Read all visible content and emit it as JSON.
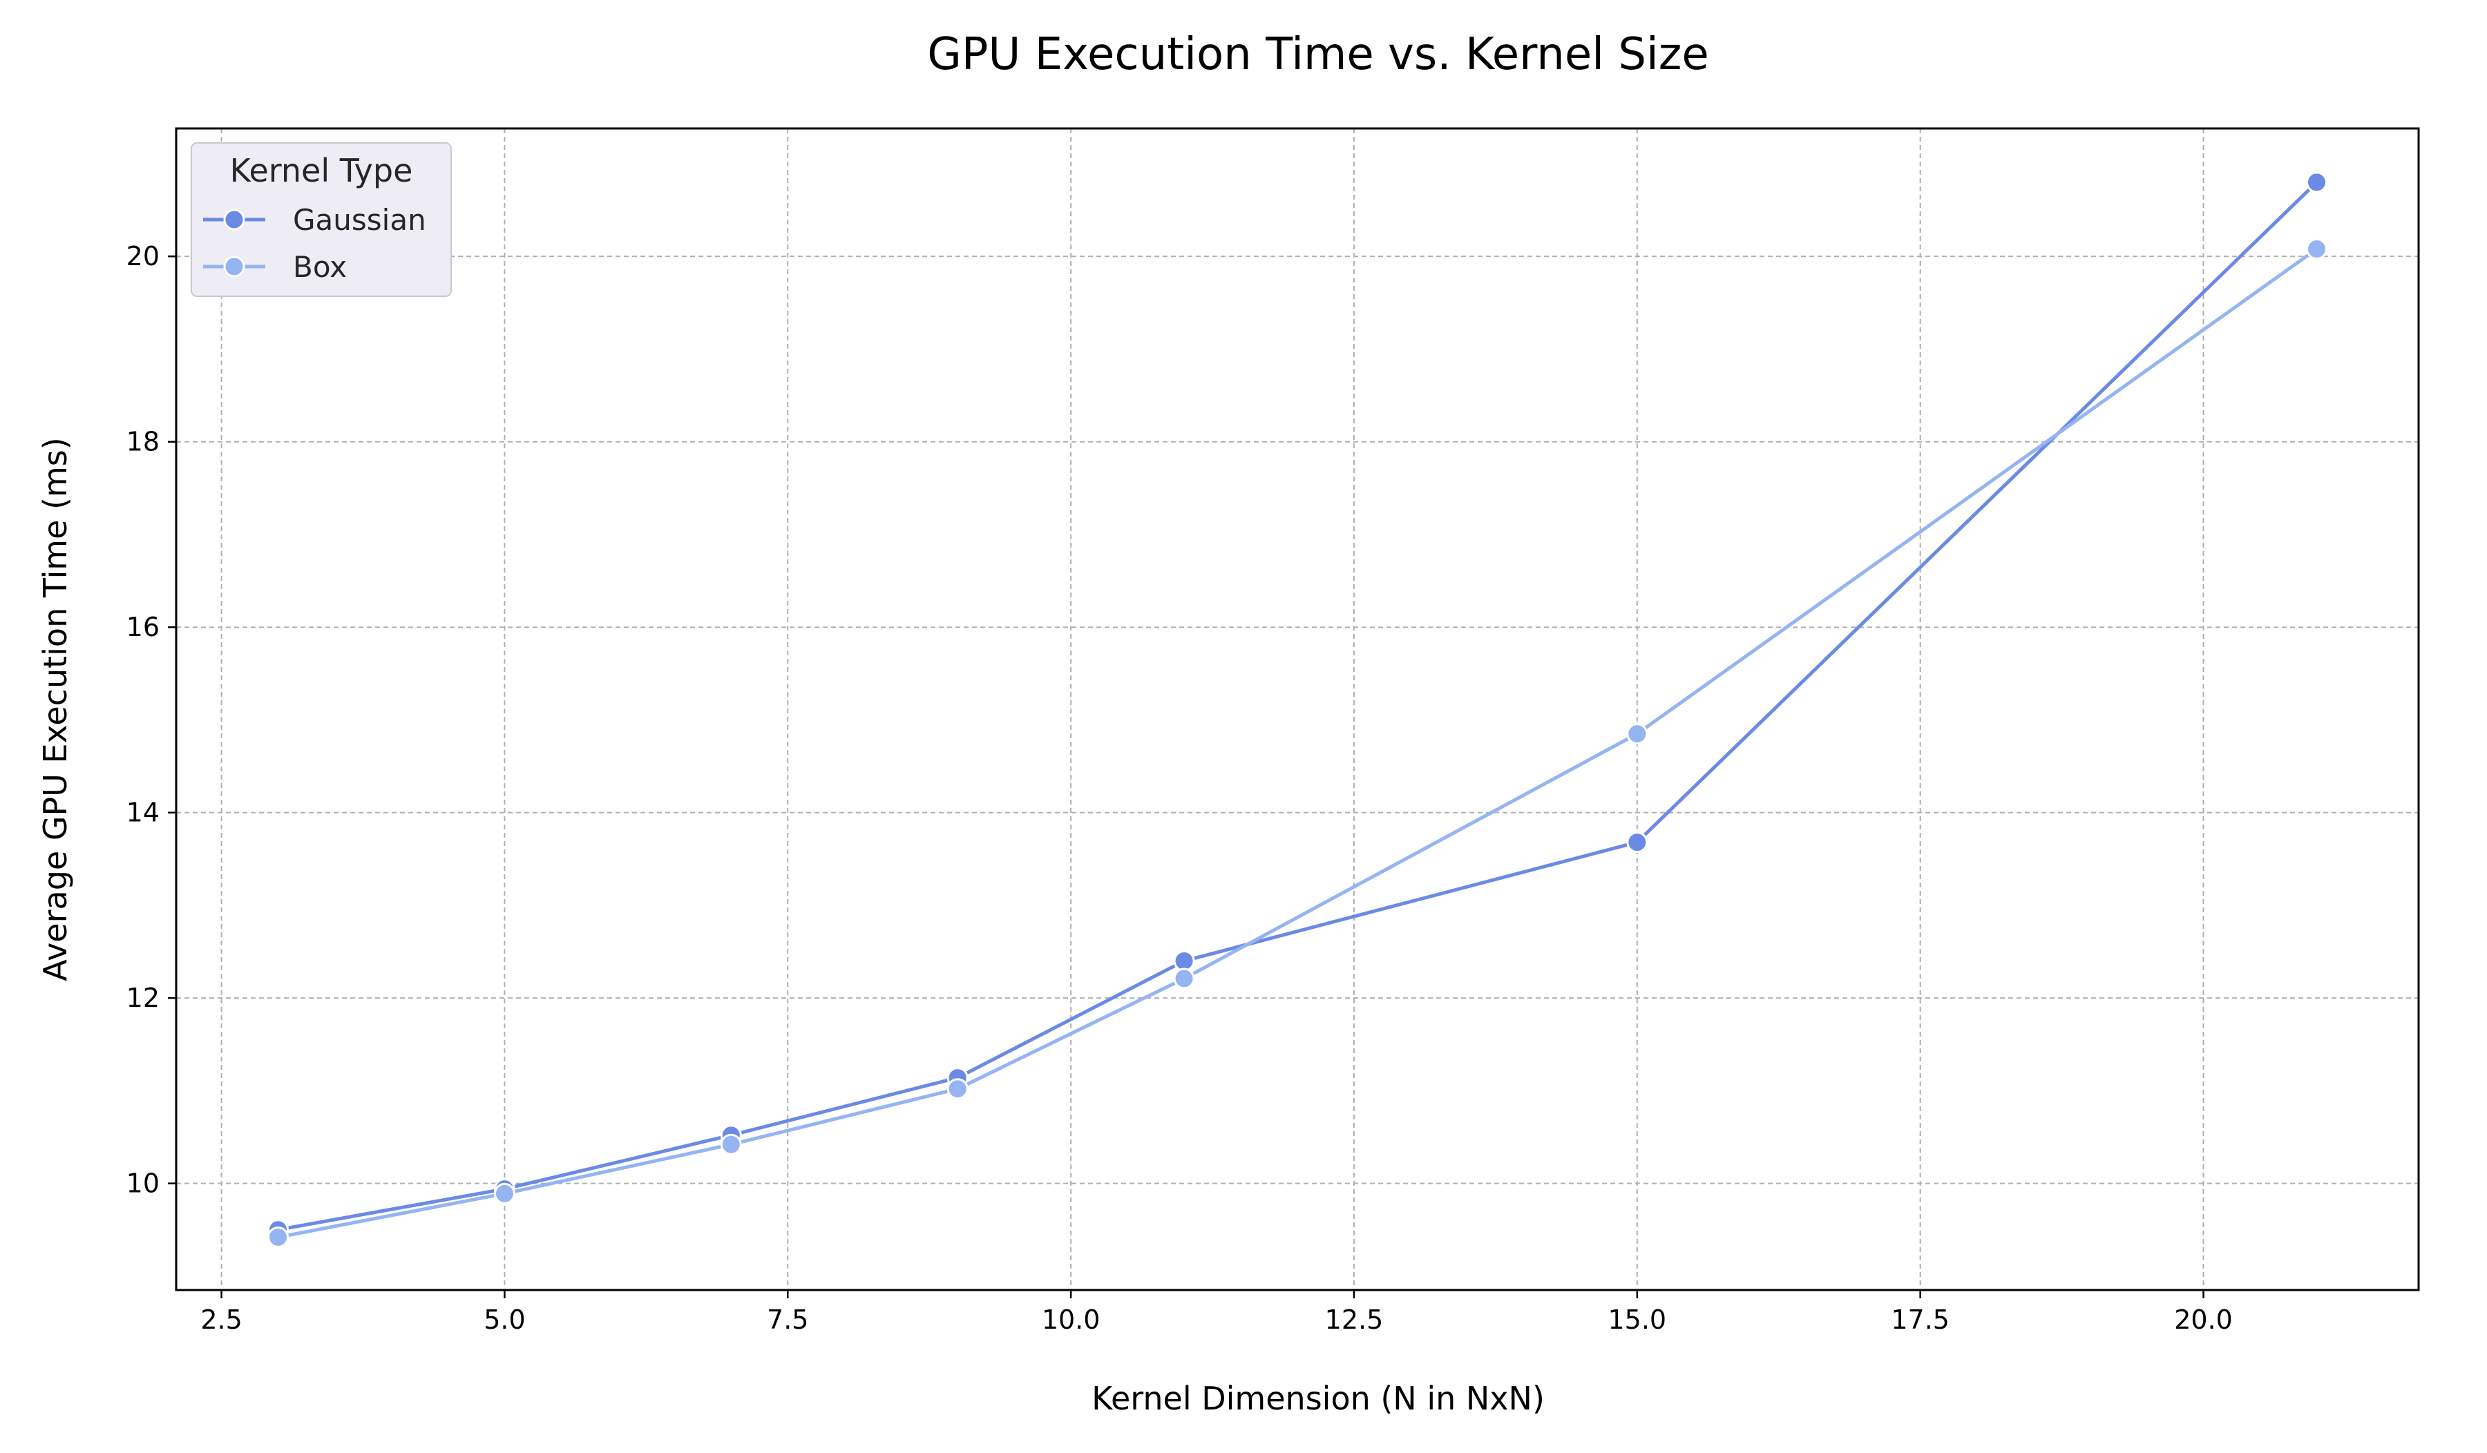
{
  "chart_data": {
    "type": "line",
    "title": "GPU Execution Time vs. Kernel Size",
    "xlabel": "Kernel Dimension (N in NxN)",
    "ylabel": "Average GPU Execution Time (ms)",
    "xlim": [
      2.1,
      21.9
    ],
    "ylim": [
      8.85,
      21.38
    ],
    "xticks": [
      2.5,
      5.0,
      7.5,
      10.0,
      12.5,
      15.0,
      17.5,
      20.0
    ],
    "xtick_labels": [
      "2.5",
      "5.0",
      "7.5",
      "10.0",
      "12.5",
      "15.0",
      "17.5",
      "20.0"
    ],
    "yticks": [
      10,
      12,
      14,
      16,
      18,
      20
    ],
    "ytick_labels": [
      "10",
      "12",
      "14",
      "16",
      "18",
      "20"
    ],
    "grid": true,
    "legend": {
      "title": "Kernel Type",
      "position": "top-left"
    },
    "series": [
      {
        "name": "Gaussian",
        "color": "#6a8ae5",
        "x": [
          3,
          5,
          7,
          9,
          11,
          15,
          21
        ],
        "y": [
          9.5,
          9.94,
          10.52,
          11.14,
          12.4,
          13.68,
          20.8
        ]
      },
      {
        "name": "Box",
        "color": "#94b4f2",
        "x": [
          3,
          5,
          7,
          9,
          11,
          15,
          21
        ],
        "y": [
          9.42,
          9.89,
          10.42,
          11.02,
          12.21,
          14.85,
          20.08
        ]
      }
    ]
  }
}
